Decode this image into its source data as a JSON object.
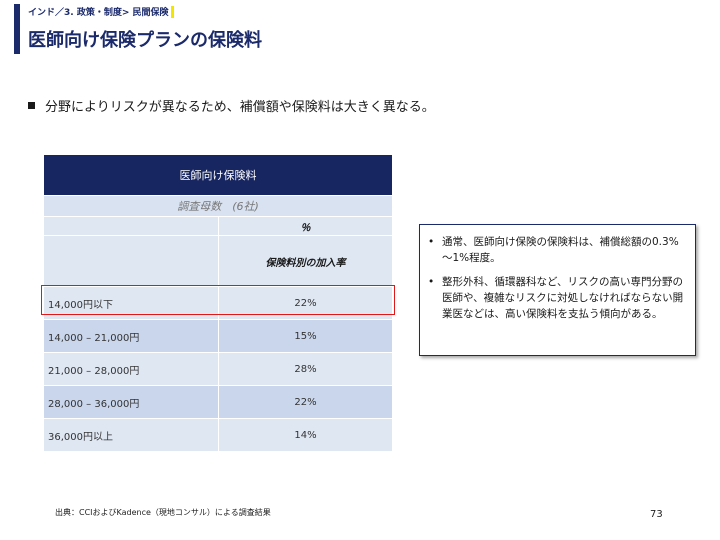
{
  "header": {
    "breadcrumb": "インド／3. 政策・制度> 民間保険",
    "title": "医師向け保険プランの保険料"
  },
  "intro": {
    "text": "分野によりリスクが異なるため、補償額や保険料は大きく異なる。"
  },
  "table": {
    "title": "医師向け保険料",
    "survey": "調査母数　(6社)",
    "unit": "％",
    "column_header": "保険料別の加入率",
    "rows": [
      {
        "category": "14,000円以下",
        "value": "22%"
      },
      {
        "category": "14,000 – 21,000円",
        "value": "15%"
      },
      {
        "category": "21,000 – 28,000円",
        "value": "28%"
      },
      {
        "category": "28,000 – 36,000円",
        "value": "22%"
      },
      {
        "category": "36,000円以上",
        "value": "14%"
      }
    ]
  },
  "notes": [
    {
      "text": "通常、医師向け保険の保険料は、補償総額の0.3%～1%程度。"
    },
    {
      "text": "整形外科、循環器科など、リスクの高い専門分野の医師や、複雑なリスクに対処しなければならない開業医などは、高い保険料を支払う傾向がある。"
    }
  ],
  "footer": {
    "source": "出典：CCIおよびKadence（現地コンサル）による調査結果",
    "page_number": "73"
  },
  "colors": {
    "navy": "#172560",
    "highlight": "#e11818",
    "row_light": "#dfe7f3",
    "row_dark": "#c9d6ec"
  }
}
